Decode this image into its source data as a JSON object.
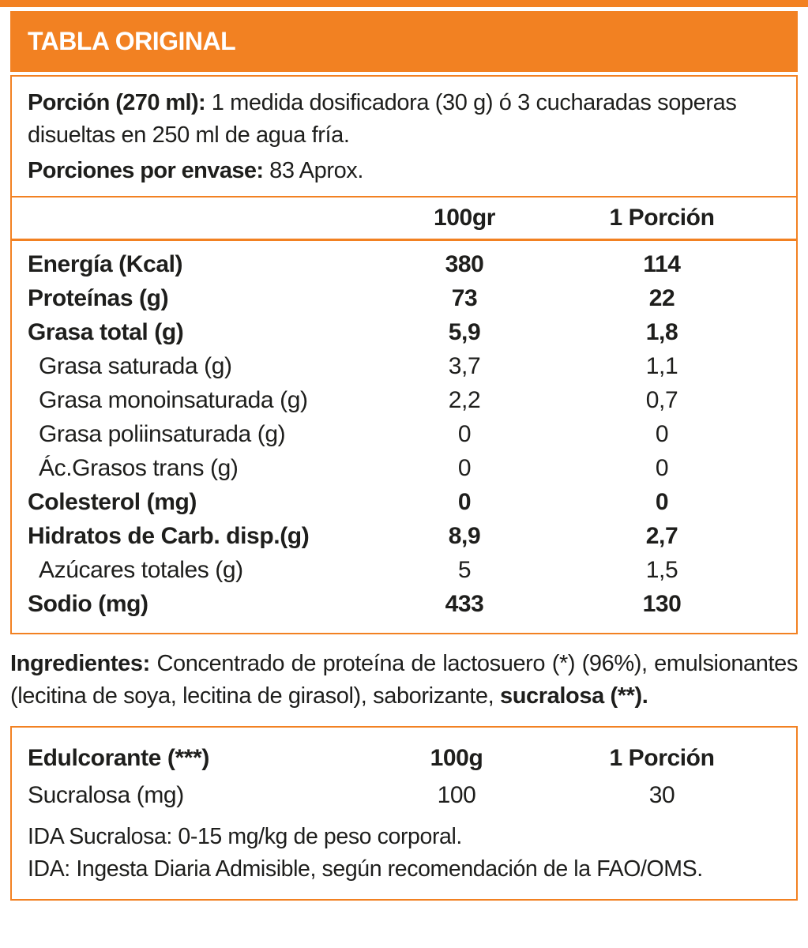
{
  "colors": {
    "accent": "#F28122",
    "text": "#1E1E1C"
  },
  "header": {
    "title": "TABLA ORIGINAL"
  },
  "serving": {
    "porcion_label": "Porción (270 ml):",
    "porcion_text": "1 medida dosificadora (30 g) ó 3 cucharadas soperas disueltas en 250 ml de agua fría.",
    "envase_label": "Porciones por envase:",
    "envase_value": "83 Aprox."
  },
  "nutrition_table": {
    "columns": [
      "100gr",
      "1 Porción"
    ],
    "rows": [
      {
        "label": "Energía (Kcal)",
        "per100": "380",
        "porcion": "114",
        "bold": true,
        "indent": false
      },
      {
        "label": "Proteínas (g)",
        "per100": "73",
        "porcion": "22",
        "bold": true,
        "indent": false
      },
      {
        "label": "Grasa total (g)",
        "per100": "5,9",
        "porcion": "1,8",
        "bold": true,
        "indent": false
      },
      {
        "label": "Grasa saturada (g)",
        "per100": "3,7",
        "porcion": "1,1",
        "bold": false,
        "indent": true
      },
      {
        "label": "Grasa monoinsaturada (g)",
        "per100": "2,2",
        "porcion": "0,7",
        "bold": false,
        "indent": true
      },
      {
        "label": "Grasa poliinsaturada (g)",
        "per100": "0",
        "porcion": "0",
        "bold": false,
        "indent": true
      },
      {
        "label": "Ác.Grasos trans (g)",
        "per100": "0",
        "porcion": "0",
        "bold": false,
        "indent": true
      },
      {
        "label": "Colesterol (mg)",
        "per100": "0",
        "porcion": "0",
        "bold": true,
        "indent": false
      },
      {
        "label": "Hidratos de Carb. disp.(g)",
        "per100": "8,9",
        "porcion": "2,7",
        "bold": true,
        "indent": false
      },
      {
        "label": "Azúcares totales (g)",
        "per100": "5",
        "porcion": "1,5",
        "bold": false,
        "indent": true
      },
      {
        "label": "Sodio (mg)",
        "per100": "433",
        "porcion": "130",
        "bold": true,
        "indent": false
      }
    ]
  },
  "ingredients": {
    "label": "Ingredientes:",
    "text": "Concentrado de proteína de lactosuero (*) (96%), emulsionantes (lecitina de soya, lecitina de girasol), saborizante,",
    "bold_tail": "sucralosa (**)."
  },
  "edulcorante": {
    "title": "Edulcorante (***)",
    "columns": [
      "100g",
      "1 Porción"
    ],
    "rows": [
      {
        "label": "Sucralosa (mg)",
        "per100": "100",
        "porcion": "30",
        "bold": false,
        "indent": false
      }
    ],
    "notes": [
      "IDA Sucralosa: 0-15 mg/kg de peso corporal.",
      "IDA: Ingesta Diaria Admisible, según recomendación de la FAO/OMS."
    ]
  }
}
